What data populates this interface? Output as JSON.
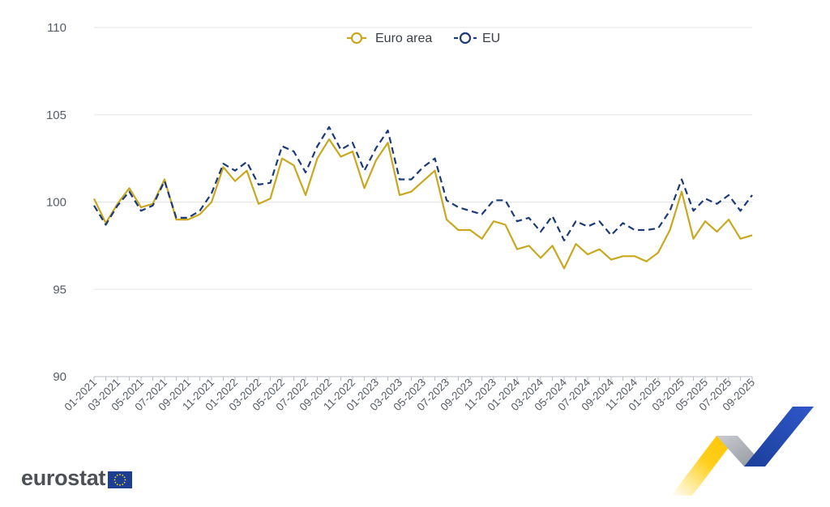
{
  "brand": {
    "name": "eurostat",
    "flag_icon": "eu-flag-icon",
    "decor_icon": "ribbon-arrow-icon"
  },
  "colors": {
    "euro_area": "#c9a81f",
    "eu": "#1b3a78",
    "grid": "#e3e6ea",
    "axis_text": "#555c66"
  },
  "chart_data": {
    "type": "line",
    "title": "",
    "xlabel": "",
    "ylabel": "",
    "ylim": [
      90,
      110
    ],
    "y_ticks": [
      90,
      95,
      100,
      105,
      110
    ],
    "grid": true,
    "legend_position": "top-center",
    "categories": [
      "01-2021",
      "02-2021",
      "03-2021",
      "04-2021",
      "05-2021",
      "06-2021",
      "07-2021",
      "08-2021",
      "09-2021",
      "10-2021",
      "11-2021",
      "12-2021",
      "01-2022",
      "02-2022",
      "03-2022",
      "04-2022",
      "05-2022",
      "06-2022",
      "07-2022",
      "08-2022",
      "09-2022",
      "10-2022",
      "11-2022",
      "12-2022",
      "01-2023",
      "02-2023",
      "03-2023",
      "04-2023",
      "05-2023",
      "06-2023",
      "07-2023",
      "08-2023",
      "09-2023",
      "10-2023",
      "11-2023",
      "12-2023",
      "01-2024",
      "02-2024",
      "03-2024",
      "04-2024",
      "05-2024",
      "06-2024",
      "07-2024",
      "08-2024",
      "09-2024",
      "10-2024",
      "11-2024",
      "12-2024",
      "01-2025",
      "02-2025",
      "03-2025",
      "04-2025",
      "05-2025",
      "06-2025",
      "07-2025",
      "08-2025",
      "09-2025"
    ],
    "x_tick_labels": [
      "01-2021",
      "03-2021",
      "05-2021",
      "07-2021",
      "09-2021",
      "11-2021",
      "01-2022",
      "03-2022",
      "05-2022",
      "07-2022",
      "09-2022",
      "11-2022",
      "01-2023",
      "03-2023",
      "05-2023",
      "07-2023",
      "09-2023",
      "11-2023",
      "01-2024",
      "03-2024",
      "05-2024",
      "07-2024",
      "09-2024",
      "11-2024",
      "01-2025",
      "03-2025",
      "05-2025",
      "07-2025",
      "09-2025"
    ],
    "series": [
      {
        "name": "Euro area",
        "style": "solid",
        "values": [
          100.2,
          98.8,
          99.9,
          100.8,
          99.7,
          99.9,
          101.3,
          99.0,
          99.0,
          99.3,
          100.0,
          102.0,
          101.2,
          101.8,
          99.9,
          100.2,
          102.5,
          102.1,
          100.4,
          102.5,
          103.6,
          102.6,
          102.9,
          100.8,
          102.4,
          103.4,
          100.4,
          100.6,
          101.2,
          101.8,
          99.0,
          98.4,
          98.4,
          97.9,
          98.9,
          98.7,
          97.3,
          97.5,
          96.8,
          97.5,
          96.2,
          97.6,
          97.0,
          97.3,
          96.7,
          96.9,
          96.9,
          96.6,
          97.1,
          98.4,
          100.6,
          97.9,
          98.9,
          98.3,
          99.0,
          97.9,
          98.1
        ]
      },
      {
        "name": "EU",
        "style": "dashed",
        "values": [
          99.8,
          98.7,
          99.8,
          100.6,
          99.5,
          99.8,
          101.2,
          99.1,
          99.1,
          99.5,
          100.5,
          102.2,
          101.8,
          102.3,
          101.0,
          101.1,
          103.2,
          102.9,
          101.7,
          103.2,
          104.3,
          103.0,
          103.4,
          101.8,
          103.1,
          104.1,
          101.3,
          101.3,
          102.0,
          102.5,
          100.1,
          99.7,
          99.5,
          99.3,
          100.1,
          100.1,
          98.9,
          99.1,
          98.3,
          99.2,
          97.8,
          98.9,
          98.6,
          98.9,
          98.1,
          98.8,
          98.4,
          98.4,
          98.5,
          99.5,
          101.3,
          99.5,
          100.2,
          99.9,
          100.4,
          99.5,
          100.4
        ]
      }
    ]
  }
}
